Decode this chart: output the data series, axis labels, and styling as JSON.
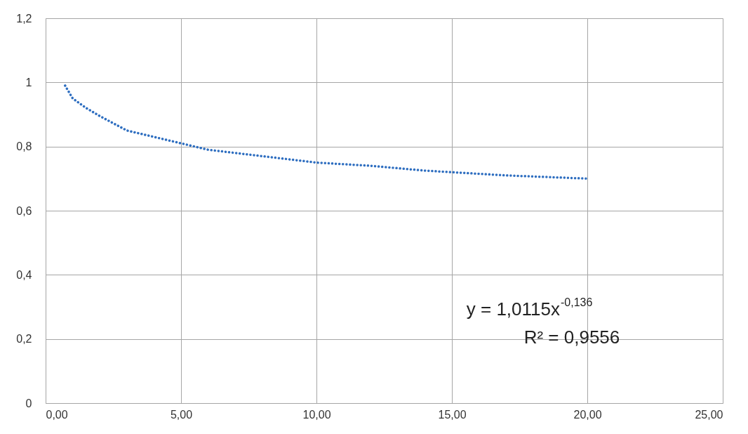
{
  "chart_data": {
    "type": "line",
    "x": [
      0.72,
      1,
      1.5,
      2,
      3,
      4,
      5,
      6,
      7,
      8,
      10,
      12,
      14,
      15,
      17,
      20
    ],
    "series": [
      {
        "color": "#2e6ec0",
        "values": [
          0.99,
          0.95,
          0.92,
          0.895,
          0.85,
          0.83,
          0.81,
          0.79,
          0.78,
          0.77,
          0.75,
          0.74,
          0.725,
          0.72,
          0.71,
          0.7
        ]
      }
    ],
    "xlim": [
      0,
      25
    ],
    "xticks": [
      {
        "value": 0,
        "label": "0,00"
      },
      {
        "value": 5,
        "label": "5,00"
      },
      {
        "value": 10,
        "label": "10,00"
      },
      {
        "value": 15,
        "label": "15,00"
      },
      {
        "value": 20,
        "label": "20,00"
      },
      {
        "value": 25,
        "label": "25,00"
      }
    ],
    "ylim": [
      0,
      1.2
    ],
    "yticks": [
      0,
      {
        "value": 0.2,
        "label": "0,2"
      },
      {
        "value": 0.4,
        "label": "0,4"
      },
      {
        "value": 0.6,
        "label": "0,6"
      },
      {
        "value": 0.8,
        "label": "0,8"
      },
      1,
      {
        "value": 1.2,
        "label": "1,2"
      }
    ],
    "grid": true,
    "marker": "none",
    "line_style": "dotted",
    "annotations": [
      "y = 1,0115x$^{-0,136}$",
      "R² = 0,9556"
    ]
  }
}
